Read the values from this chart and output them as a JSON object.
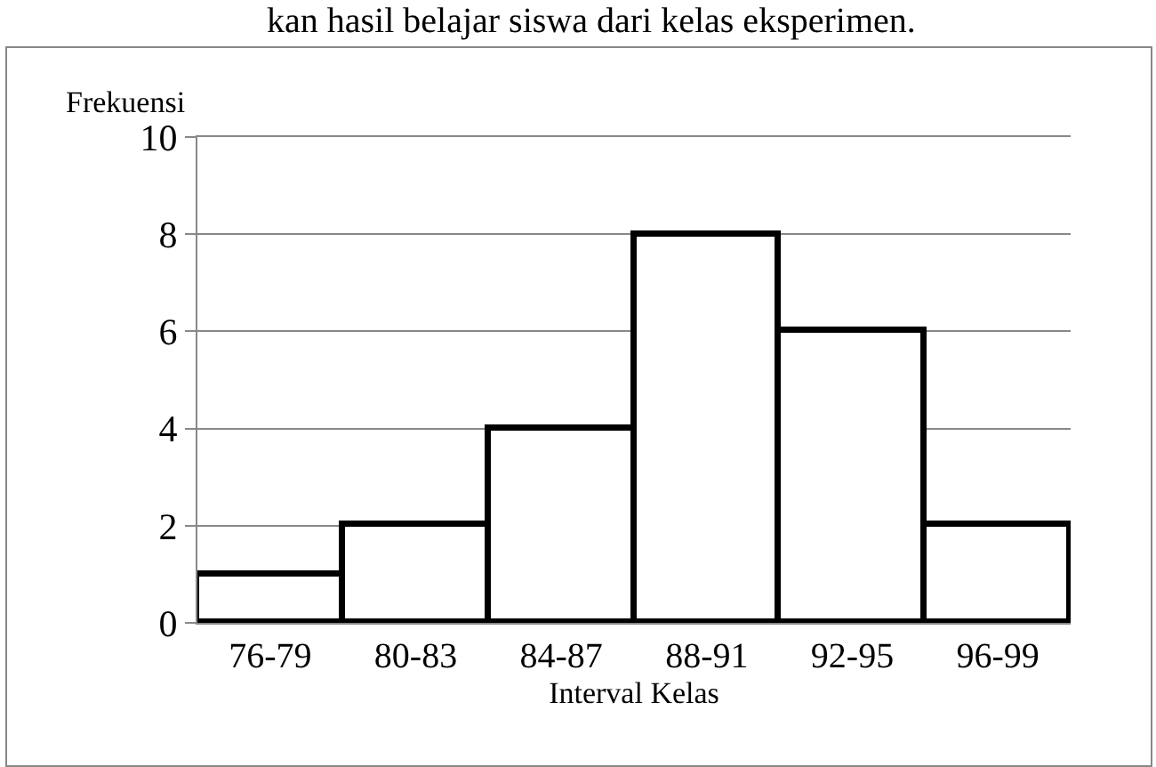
{
  "chart_data": {
    "type": "bar",
    "categories": [
      "76-79",
      "80-83",
      "84-87",
      "88-91",
      "92-95",
      "96-99"
    ],
    "values": [
      1,
      2,
      4,
      8,
      6,
      2
    ],
    "color": "#ffffff",
    "xlabel": "Interval Kelas",
    "ylabel": "Frekuensi",
    "ylim": [
      0,
      10
    ],
    "yticks": [
      0,
      2,
      4,
      6,
      8,
      10
    ],
    "grid": "y",
    "annotations": [
      "kan hasil belajar siswa dari kelas eksperimen."
    ]
  }
}
